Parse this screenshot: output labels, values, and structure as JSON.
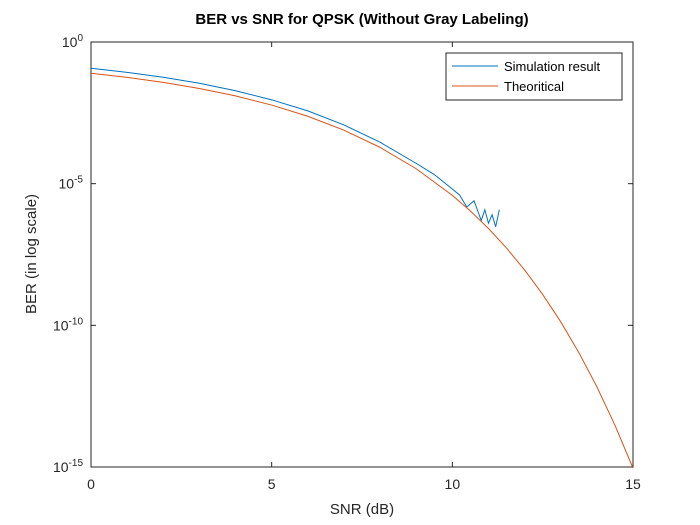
{
  "chart_data": {
    "type": "line",
    "title": "BER vs SNR for QPSK (Without Gray Labeling)",
    "xlabel": "SNR (dB)",
    "ylabel": "BER (in log scale)",
    "yscale": "log",
    "xlim": [
      0,
      15
    ],
    "xticks": [
      0,
      5,
      10,
      15
    ],
    "ylim": [
      1e-15,
      1
    ],
    "yticks": [
      {
        "value": 1e-15,
        "label": "10^-15"
      },
      {
        "value": 1e-10,
        "label": "10^-10"
      },
      {
        "value": 1e-05,
        "label": "10^-5"
      },
      {
        "value": 1,
        "label": "10^0"
      }
    ],
    "legend": "top-right",
    "series": [
      {
        "name": "Simulation result",
        "color": "#0072BD",
        "x": [
          0,
          1,
          2,
          3,
          4,
          5,
          6,
          7,
          8,
          9,
          9.5,
          10,
          10.2,
          10.4,
          10.6,
          10.8,
          10.9,
          11.0,
          11.1,
          11.2,
          11.3
        ],
        "values": [
          0.118,
          0.085,
          0.057,
          0.035,
          0.019,
          0.0091,
          0.0037,
          0.00118,
          0.00029,
          5.2e-05,
          2.1e-05,
          6.5e-06,
          4e-06,
          1.5e-06,
          2.5e-06,
          5e-07,
          1.2e-06,
          4e-07,
          8e-07,
          3e-07,
          1.2e-06
        ]
      },
      {
        "name": "Theoritical",
        "color": "#D95319",
        "x": [
          0,
          1,
          2,
          3,
          4,
          5,
          6,
          7,
          8,
          9,
          10,
          10.5,
          11,
          11.5,
          12,
          12.5,
          13,
          13.5,
          14,
          14.5,
          15
        ],
        "values": [
          0.0786,
          0.0563,
          0.0375,
          0.0229,
          0.0125,
          0.00595,
          0.00239,
          0.000773,
          0.000191,
          3.36e-05,
          3.87e-06,
          1.08e-06,
          2.61e-07,
          5.33e-08,
          9.01e-09,
          1.23e-09,
          1.33e-10,
          1.1e-11,
          6.81e-13,
          3e-14,
          9.12e-16
        ]
      }
    ]
  }
}
